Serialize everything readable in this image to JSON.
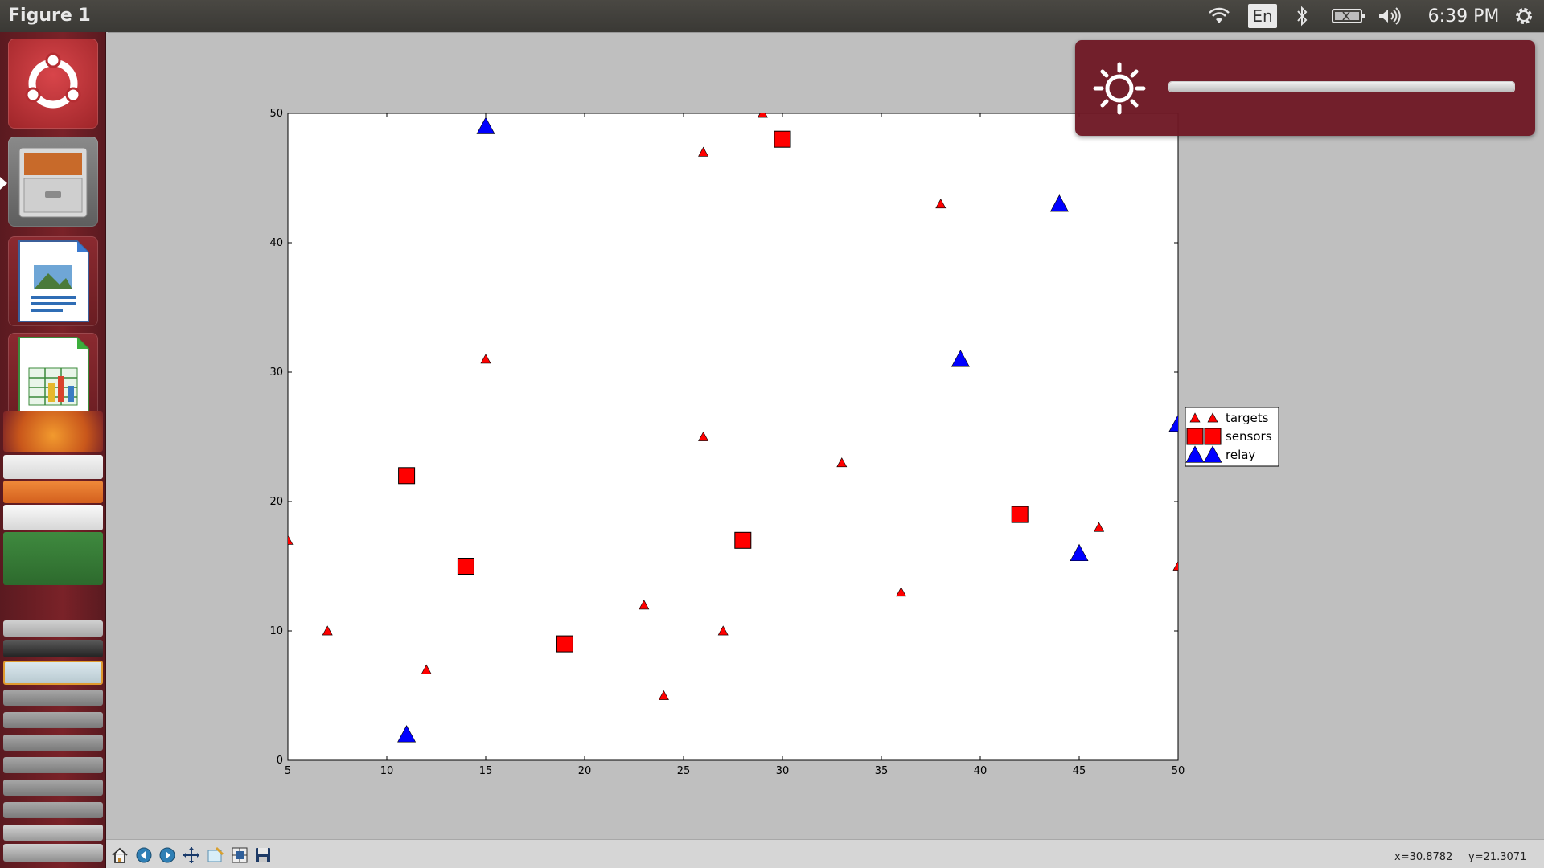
{
  "window": {
    "title": "Figure 1"
  },
  "top_panel": {
    "language": "En",
    "clock": "6:39 PM",
    "icons": [
      "wifi-icon",
      "bluetooth-icon",
      "battery-icon",
      "volume-icon",
      "settings-gear-icon"
    ]
  },
  "launcher": {
    "items": [
      "ubuntu-dash-icon",
      "file-manager-icon",
      "libreoffice-impress-icon",
      "libreoffice-calc-icon",
      "firefox-icon"
    ]
  },
  "osd": {
    "type": "brightness",
    "icon": "sun-icon",
    "level": 1.0
  },
  "toolbar": {
    "buttons": [
      "home-icon",
      "back-icon",
      "forward-icon",
      "pan-icon",
      "zoom-icon",
      "subplots-icon",
      "save-icon"
    ],
    "coord_x": "x=30.8782",
    "coord_y": "y=21.3071"
  },
  "colors": {
    "target": "#ff0000",
    "sensor": "#ff0000",
    "relay": "#0000ff",
    "launcher": "#7a2228",
    "osd": "#6e1824"
  },
  "chart_data": {
    "type": "scatter",
    "title": "",
    "xlabel": "",
    "ylabel": "",
    "xlim": [
      5,
      50
    ],
    "ylim": [
      0,
      50
    ],
    "xticks": [
      "5",
      "10",
      "15",
      "20",
      "25",
      "30",
      "35",
      "40",
      "45",
      "50"
    ],
    "yticks": [
      "0",
      "10",
      "20",
      "30",
      "40",
      "50"
    ],
    "grid": false,
    "legend_position": "right-outside",
    "series": [
      {
        "name": "targets",
        "marker": "triangle-small",
        "color": "#ff0000",
        "points": [
          [
            5,
            17
          ],
          [
            7,
            10
          ],
          [
            12,
            7
          ],
          [
            15,
            31
          ],
          [
            23,
            12
          ],
          [
            24,
            5
          ],
          [
            26,
            47
          ],
          [
            26,
            25
          ],
          [
            27,
            10
          ],
          [
            29,
            50
          ],
          [
            33,
            23
          ],
          [
            36,
            13
          ],
          [
            38,
            43
          ],
          [
            46,
            18
          ],
          [
            50,
            15
          ]
        ]
      },
      {
        "name": "sensors",
        "marker": "square",
        "color": "#ff0000",
        "points": [
          [
            11,
            22
          ],
          [
            14,
            15
          ],
          [
            19,
            9
          ],
          [
            28,
            17
          ],
          [
            30,
            48
          ],
          [
            42,
            19
          ]
        ]
      },
      {
        "name": "relay",
        "marker": "triangle-large",
        "color": "#0000ff",
        "points": [
          [
            11,
            2
          ],
          [
            15,
            49
          ],
          [
            39,
            31
          ],
          [
            44,
            43
          ],
          [
            45,
            16
          ],
          [
            50,
            26
          ]
        ]
      }
    ]
  }
}
